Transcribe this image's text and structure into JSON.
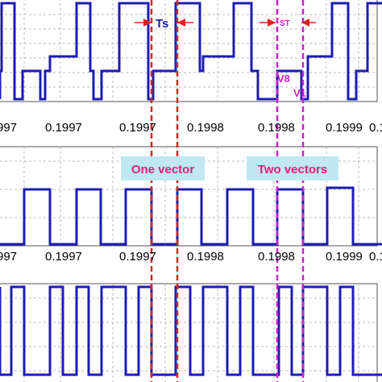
{
  "chart_data": {
    "type": "line",
    "x_unit_note": "",
    "tick_labels": [
      "0.1997",
      "0.1997",
      "0.1998",
      "0.1998",
      "0.1999",
      "0.1999",
      "0.1"
    ],
    "tick_labels_left": [
      "997",
      "997"
    ],
    "panels": [
      {
        "series": [
          {
            "levels": [
              0,
              1,
              0,
              1,
              0,
              1,
              0,
              1,
              0,
              1,
              0,
              1,
              0,
              1,
              0,
              1,
              0,
              1,
              0,
              1,
              0,
              1,
              0,
              1,
              0,
              1,
              0,
              1,
              0,
              1,
              0,
              1,
              0,
              1,
              0,
              1,
              0,
              1,
              0,
              1,
              0,
              1,
              0,
              1,
              0,
              1,
              0,
              1,
              0,
              1
            ]
          }
        ]
      },
      {
        "series": [
          {
            "levels": [
              0,
              1,
              0,
              1,
              0,
              1,
              0,
              1,
              0,
              1,
              0,
              1,
              0,
              1,
              0,
              1,
              0,
              1,
              0,
              1
            ]
          }
        ]
      },
      {
        "series": [
          {
            "levels": [
              0,
              1,
              0,
              1,
              0,
              1,
              0,
              1,
              0,
              1,
              0,
              1,
              0,
              1,
              0,
              1,
              0,
              1,
              0,
              1,
              0,
              1,
              0,
              1,
              0,
              1,
              0,
              1,
              0,
              1
            ]
          }
        ]
      }
    ],
    "annotations": {
      "ts": "Ts",
      "st": "ST",
      "v8": "V8",
      "v1": "V1",
      "one_vector": "One vector",
      "two_vectors": "Two vectors"
    },
    "colors": {
      "signal": "#1c1cb4",
      "red_marker": "#e02020",
      "magenta_marker": "#cc22cc",
      "label_box": "#bfe8f2",
      "label_text": "#e0207a",
      "ts_text": "#1c1cb4"
    },
    "grid": true
  }
}
